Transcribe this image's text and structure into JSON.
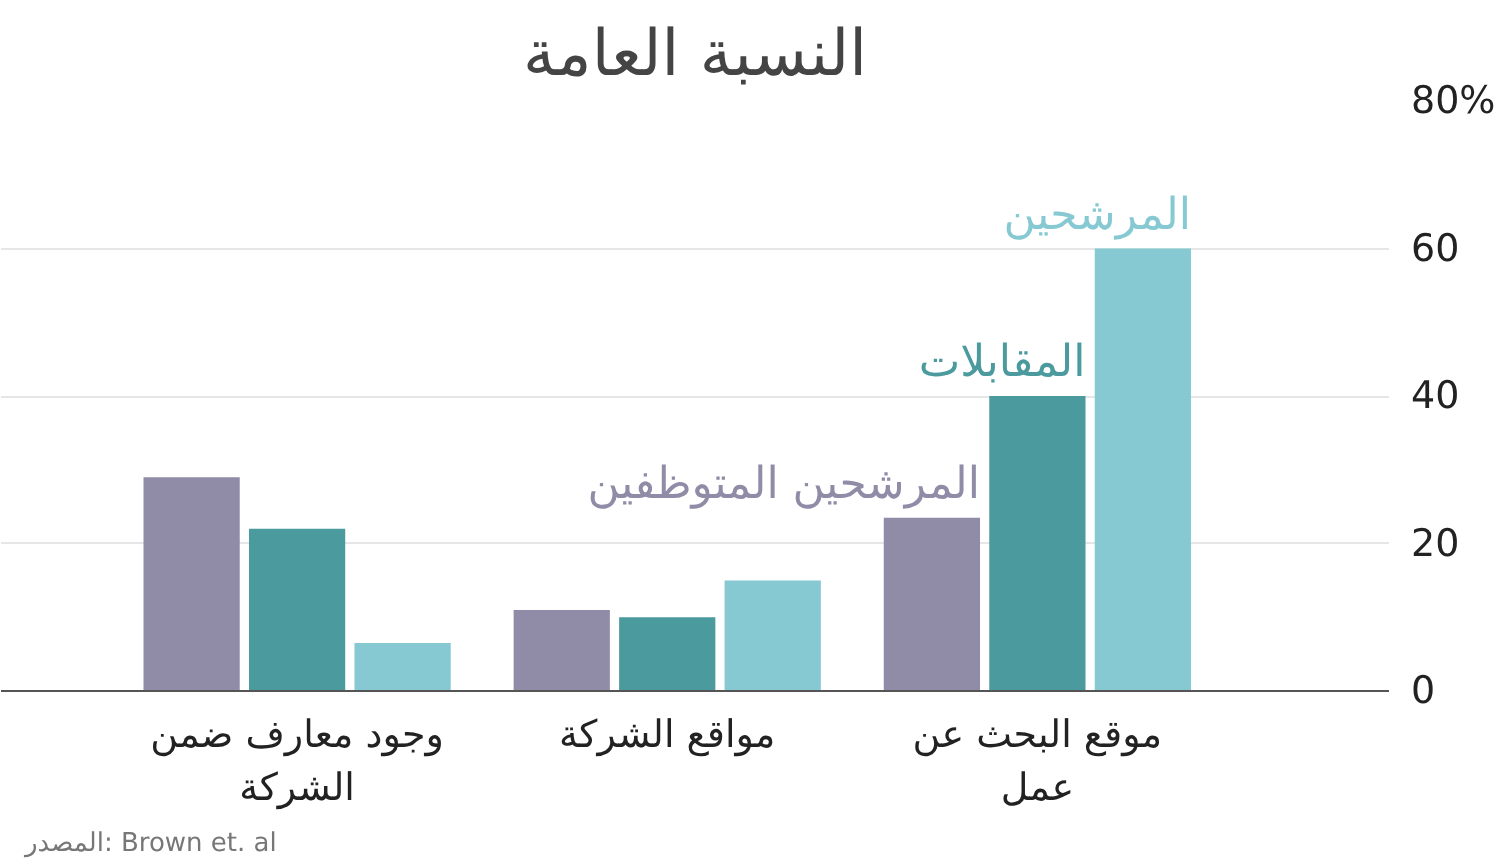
{
  "chart_data": {
    "type": "bar",
    "title": "النسبة العامة",
    "categories": [
      "وجود معارف ضمن الشركة",
      "مواقع الشركة",
      "موقع البحث عن عمل"
    ],
    "series": [
      {
        "name": "المرشحين المتوظفين",
        "color": "#908ba6",
        "values": [
          29,
          11,
          23.5
        ]
      },
      {
        "name": "المقابلات",
        "color": "#4a9a9e",
        "values": [
          22,
          10,
          40
        ]
      },
      {
        "name": "المرشحين",
        "color": "#86c9d3",
        "values": [
          6.5,
          15,
          60
        ]
      }
    ],
    "ylim": [
      0,
      80
    ],
    "yticks": [
      0,
      20,
      40,
      60,
      {
        "value": 80,
        "label": "80%"
      }
    ],
    "grid": "y",
    "legend": false,
    "annotations": [
      "المصدر: Brown et. al"
    ]
  }
}
